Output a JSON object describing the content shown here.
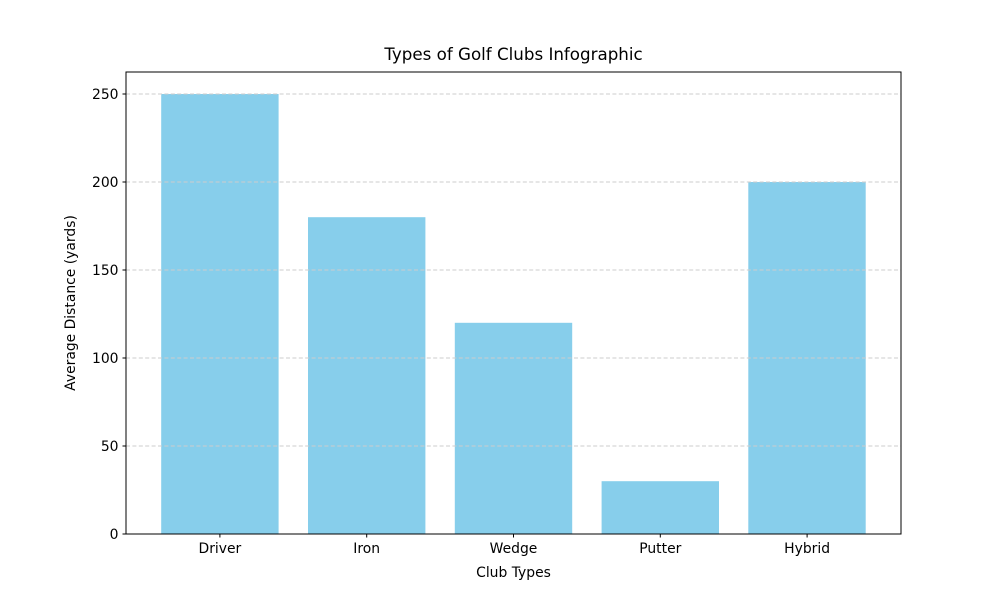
{
  "figure": {
    "background": "#ffffff",
    "frame_color": "#000000"
  },
  "chart_data": {
    "type": "bar",
    "title": "Types of Golf Clubs Infographic",
    "xlabel": "Club Types",
    "ylabel": "Average Distance (yards)",
    "categories": [
      "Driver",
      "Iron",
      "Wedge",
      "Putter",
      "Hybrid"
    ],
    "values": [
      250,
      180,
      120,
      30,
      200
    ],
    "ylim": [
      0,
      262.5
    ],
    "yticks": [
      0,
      50,
      100,
      150,
      200,
      250
    ],
    "bar_color": "#87CEEB",
    "grid": {
      "axis": "y",
      "style": "dashed",
      "color": "#cccccc",
      "on": true
    },
    "legend": null
  }
}
